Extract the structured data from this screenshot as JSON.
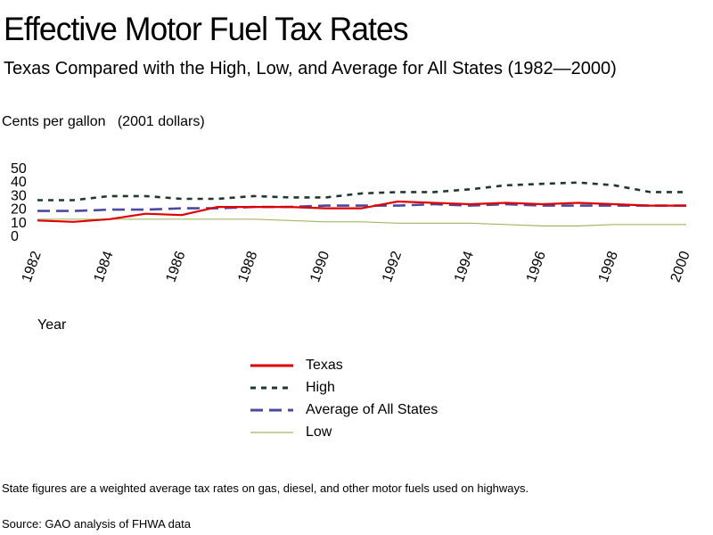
{
  "title": "Effective Motor Fuel Tax Rates",
  "subtitle": "Texas Compared with the High, Low, and Average for All States (1982—2000)",
  "unit_label": "Cents per gallon   (2001 dollars)",
  "xlabel": "Year",
  "note": "State figures are a weighted average tax rates on gas, diesel, and other motor fuels used on highways.",
  "source": "Source: GAO analysis of FHWA data",
  "chart_data": {
    "type": "line",
    "title": "Effective Motor Fuel Tax Rates",
    "subtitle": "Texas Compared with the High, Low, and Average for All States (1982—2000)",
    "xlabel": "Year",
    "ylabel": "Cents per gallon   (2001 dollars)",
    "xlim": [
      1982,
      2000
    ],
    "ylim": [
      0,
      50
    ],
    "yticks": [
      0,
      10,
      20,
      30,
      40,
      50
    ],
    "xticks": [
      1982,
      1984,
      1986,
      1988,
      1990,
      1992,
      1994,
      1996,
      1998,
      2000
    ],
    "grid": false,
    "legend_position": "bottom-center",
    "x": [
      1982,
      1983,
      1984,
      1985,
      1986,
      1987,
      1988,
      1989,
      1990,
      1991,
      1992,
      1993,
      1994,
      1995,
      1996,
      1997,
      1998,
      1999,
      2000
    ],
    "series": [
      {
        "name": "Texas",
        "color": "#e00000",
        "dash": "solid",
        "values": [
          11,
          10,
          12,
          16,
          15,
          21,
          21,
          21,
          20,
          20,
          25,
          24,
          23,
          24,
          23,
          24,
          23,
          22,
          22
        ]
      },
      {
        "name": "High",
        "color": "#1e3a2c",
        "dash": "dotted",
        "values": [
          26,
          26,
          29,
          29,
          27,
          27,
          29,
          28,
          28,
          31,
          32,
          32,
          34,
          37,
          38,
          39,
          37,
          32,
          32
        ]
      },
      {
        "name": "Average of All States",
        "color": "#4a4aa0",
        "dash": "dashed",
        "values": [
          18,
          18,
          19,
          19,
          20,
          20,
          21,
          21,
          22,
          22,
          22,
          23,
          22,
          23,
          22,
          22,
          22,
          22,
          22
        ]
      },
      {
        "name": "Low",
        "color": "#a0b860",
        "dash": "solid-thin",
        "values": [
          12,
          12,
          12,
          12,
          12,
          12,
          12,
          11,
          10,
          10,
          9,
          9,
          9,
          8,
          7,
          7,
          8,
          8,
          8
        ]
      }
    ]
  }
}
